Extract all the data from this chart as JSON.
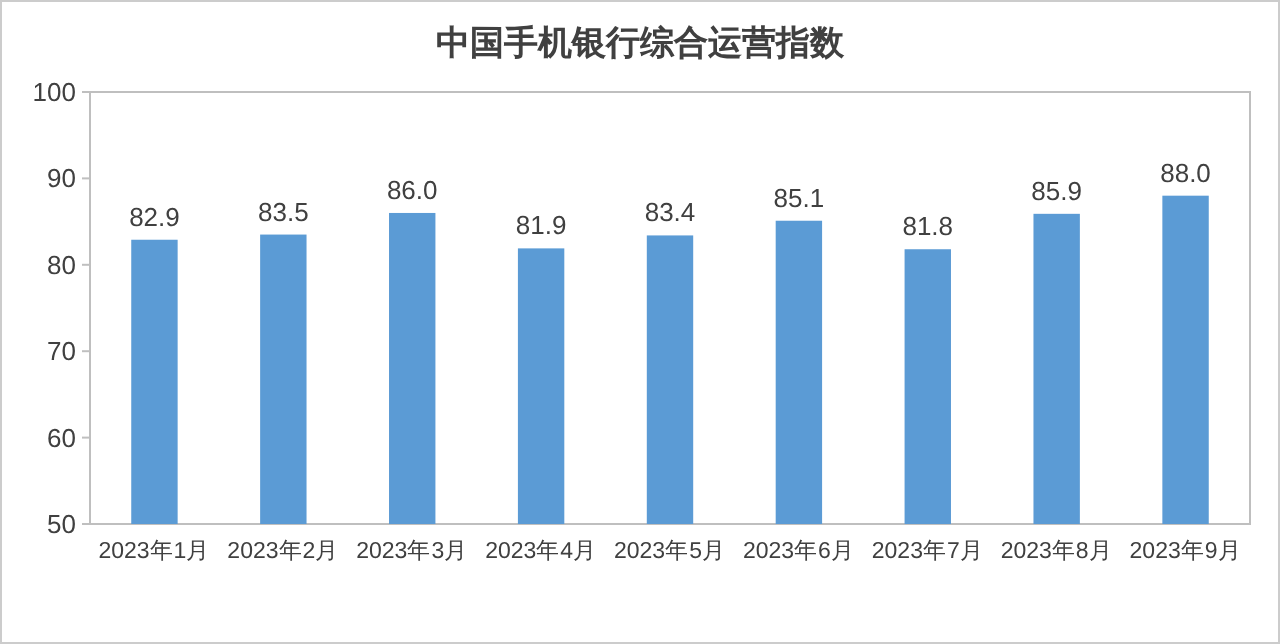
{
  "chart_data": {
    "type": "bar",
    "title": "中国手机银行综合运营指数",
    "categories": [
      "2023年1月",
      "2023年2月",
      "2023年3月",
      "2023年4月",
      "2023年5月",
      "2023年6月",
      "2023年7月",
      "2023年8月",
      "2023年9月"
    ],
    "values": [
      82.9,
      83.5,
      86.0,
      81.9,
      83.4,
      85.1,
      81.8,
      85.9,
      88.0
    ],
    "value_labels": [
      "82.9",
      "83.5",
      "86.0",
      "81.9",
      "83.4",
      "85.1",
      "81.8",
      "85.9",
      "88.0"
    ],
    "color": "#5b9bd5",
    "ylim": [
      50,
      100
    ],
    "yticks": [
      50,
      60,
      70,
      80,
      90,
      100
    ]
  }
}
